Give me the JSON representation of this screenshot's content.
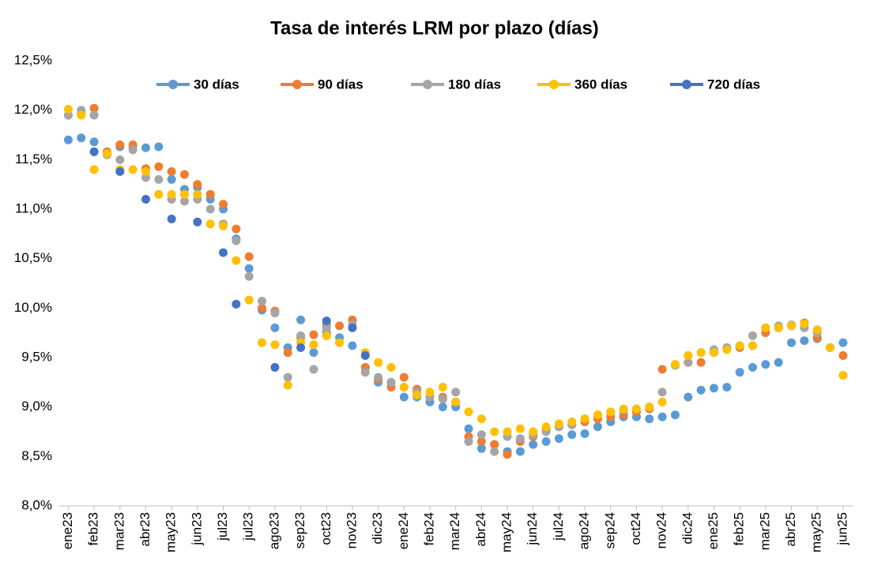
{
  "chart_data": {
    "type": "scatter",
    "title": "Tasa de interés LRM por plazo (días)",
    "x": [
      0,
      0.5,
      1,
      1.5,
      2,
      2.5,
      3,
      3.5,
      4,
      4.5,
      5,
      5.5,
      6,
      6.5,
      7,
      7.5,
      8,
      8.5,
      9,
      9.5,
      10,
      10.5,
      11,
      11.5,
      12,
      12.5,
      13,
      13.5,
      14,
      14.5,
      15,
      15.5,
      16,
      16.5,
      17,
      17.5,
      18,
      18.5,
      19,
      19.5,
      20,
      20.5,
      21,
      21.5,
      22,
      22.5,
      23,
      23.5,
      24,
      24.5,
      25,
      25.5,
      26,
      26.5,
      27,
      27.5,
      28,
      28.5,
      29,
      29.5,
      30
    ],
    "xlim": [
      -0.35,
      30.4
    ],
    "xticks": [
      {
        "value": 0,
        "label": "ene23"
      },
      {
        "value": 1,
        "label": "feb23"
      },
      {
        "value": 2,
        "label": "mar23"
      },
      {
        "value": 3,
        "label": "abr23"
      },
      {
        "value": 4,
        "label": "may23"
      },
      {
        "value": 5,
        "label": "jun23"
      },
      {
        "value": 6,
        "label": "jul23"
      },
      {
        "value": 7,
        "label": "jul23"
      },
      {
        "value": 8,
        "label": "ago23"
      },
      {
        "value": 9,
        "label": "sep23"
      },
      {
        "value": 10,
        "label": "oct23"
      },
      {
        "value": 11,
        "label": "nov23"
      },
      {
        "value": 12,
        "label": "dic23"
      },
      {
        "value": 13,
        "label": "ene24"
      },
      {
        "value": 14,
        "label": "feb24"
      },
      {
        "value": 15,
        "label": "mar24"
      },
      {
        "value": 16,
        "label": "abr24"
      },
      {
        "value": 17,
        "label": "may24"
      },
      {
        "value": 18,
        "label": "jun24"
      },
      {
        "value": 19,
        "label": "jul24"
      },
      {
        "value": 20,
        "label": "ago24"
      },
      {
        "value": 21,
        "label": "sep24"
      },
      {
        "value": 22,
        "label": "oct24"
      },
      {
        "value": 23,
        "label": "nov24"
      },
      {
        "value": 24,
        "label": "dic24"
      },
      {
        "value": 25,
        "label": "ene25"
      },
      {
        "value": 26,
        "label": "feb25"
      },
      {
        "value": 27,
        "label": "mar25"
      },
      {
        "value": 28,
        "label": "abr25"
      },
      {
        "value": 29,
        "label": "may25"
      },
      {
        "value": 30,
        "label": "jun25"
      }
    ],
    "ylim": [
      8.0,
      12.5
    ],
    "yticks": [
      {
        "value": 8.0,
        "label": "8,0%"
      },
      {
        "value": 8.5,
        "label": "8,5%"
      },
      {
        "value": 9.0,
        "label": "9,0%"
      },
      {
        "value": 9.5,
        "label": "9,5%"
      },
      {
        "value": 10.0,
        "label": "10,0%"
      },
      {
        "value": 10.5,
        "label": "10,5%"
      },
      {
        "value": 11.0,
        "label": "11,0%"
      },
      {
        "value": 11.5,
        "label": "11,5%"
      },
      {
        "value": 12.0,
        "label": "12,0%"
      },
      {
        "value": 12.5,
        "label": "12,5%"
      }
    ],
    "legend": "top",
    "series": [
      {
        "name": "30 días",
        "color": "#5b9bd5",
        "values": [
          11.7,
          11.72,
          11.68,
          11.55,
          11.63,
          11.63,
          11.62,
          11.63,
          11.3,
          11.2,
          11.22,
          11.1,
          11.0,
          10.7,
          10.4,
          9.98,
          9.8,
          9.6,
          9.88,
          9.55,
          9.75,
          9.7,
          9.62,
          9.4,
          9.25,
          9.25,
          9.1,
          9.1,
          9.05,
          9.0,
          9.0,
          8.78,
          8.58,
          8.62,
          8.55,
          8.55,
          8.62,
          8.65,
          8.68,
          8.72,
          8.73,
          8.8,
          8.85,
          8.9,
          8.9,
          8.88,
          8.9,
          8.92,
          9.1,
          9.17,
          9.19,
          9.2,
          9.35,
          9.4,
          9.43,
          9.45,
          9.65,
          9.67,
          9.69,
          9.6,
          9.65
        ]
      },
      {
        "name": "90 días",
        "color": "#ed7d31",
        "values": [
          11.95,
          11.96,
          12.02,
          11.58,
          11.65,
          11.65,
          11.41,
          11.43,
          11.38,
          11.35,
          11.25,
          11.15,
          11.05,
          10.8,
          10.52,
          10.0,
          9.97,
          9.55,
          9.7,
          9.73,
          9.83,
          9.82,
          9.88,
          9.4,
          9.28,
          9.2,
          9.3,
          9.18,
          9.1,
          9.1,
          9.05,
          8.7,
          8.65,
          8.62,
          8.52,
          8.65,
          8.7,
          8.78,
          8.8,
          8.82,
          8.85,
          8.88,
          8.9,
          8.92,
          8.95,
          8.98,
          9.38,
          9.43,
          9.45,
          9.45,
          9.55,
          9.6,
          9.6,
          9.62,
          9.75,
          9.8,
          9.82,
          9.85,
          9.7,
          9.6,
          9.52
        ]
      },
      {
        "name": "180 días",
        "color": "#a5a5a5",
        "values": [
          11.95,
          12.0,
          11.95,
          11.55,
          11.5,
          11.6,
          11.32,
          11.3,
          11.1,
          11.08,
          11.1,
          11.0,
          10.85,
          10.68,
          10.32,
          10.07,
          9.95,
          9.3,
          9.72,
          9.38,
          9.8,
          9.65,
          9.83,
          9.35,
          9.3,
          9.25,
          9.2,
          9.15,
          9.1,
          9.08,
          9.15,
          8.65,
          8.72,
          8.55,
          8.7,
          8.68,
          8.72,
          8.75,
          8.8,
          8.82,
          8.88,
          8.92,
          8.95,
          8.97,
          8.98,
          9.0,
          9.15,
          9.42,
          9.45,
          9.55,
          9.58,
          9.6,
          9.62,
          9.72,
          9.8,
          9.82,
          9.83,
          9.8,
          9.75,
          9.6,
          null
        ]
      },
      {
        "name": "360 días",
        "color": "#ffc000",
        "values": [
          12.01,
          11.95,
          11.4,
          11.56,
          11.4,
          11.4,
          11.38,
          11.15,
          11.15,
          11.15,
          11.15,
          10.85,
          10.83,
          10.48,
          10.08,
          9.65,
          9.63,
          9.22,
          9.65,
          9.63,
          9.72,
          9.65,
          9.8,
          9.55,
          9.45,
          9.4,
          9.2,
          9.12,
          9.15,
          9.2,
          9.05,
          8.95,
          8.88,
          8.75,
          8.75,
          8.78,
          8.75,
          8.8,
          8.83,
          8.85,
          8.88,
          8.92,
          8.95,
          8.98,
          8.98,
          9.0,
          9.05,
          9.43,
          9.52,
          9.55,
          9.55,
          9.58,
          9.62,
          9.62,
          9.8,
          9.8,
          9.82,
          9.84,
          9.78,
          9.6,
          9.32
        ]
      },
      {
        "name": "720 días",
        "color": "#4472c4",
        "values": [
          null,
          null,
          11.58,
          null,
          11.38,
          null,
          11.1,
          null,
          10.9,
          null,
          10.87,
          null,
          10.56,
          10.04,
          null,
          null,
          9.4,
          null,
          9.6,
          null,
          9.87,
          null,
          9.8,
          9.52,
          null,
          null,
          null,
          null,
          null,
          null,
          null,
          null,
          null,
          null,
          null,
          null,
          null,
          null,
          null,
          null,
          null,
          null,
          null,
          null,
          null,
          null,
          null,
          null,
          null,
          null,
          null,
          null,
          null,
          null,
          null,
          null,
          null,
          null,
          null,
          null,
          null
        ]
      }
    ]
  }
}
